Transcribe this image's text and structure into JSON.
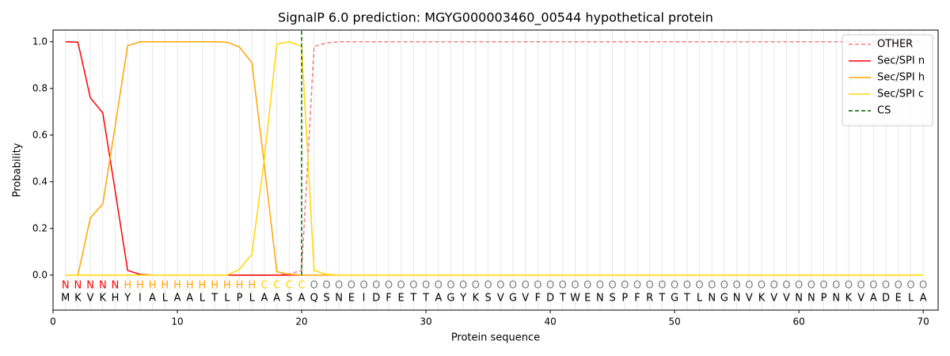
{
  "chart_data": {
    "type": "line",
    "title": "SignalP 6.0 prediction: MGYG000003460_00544 hypothetical protein",
    "xlabel": "Protein sequence",
    "ylabel": "Probability",
    "x": [
      1,
      2,
      3,
      4,
      5,
      6,
      7,
      8,
      9,
      10,
      11,
      12,
      13,
      14,
      15,
      16,
      17,
      18,
      19,
      20,
      21,
      22,
      23,
      24,
      25,
      26,
      27,
      28,
      29,
      30,
      31,
      32,
      33,
      34,
      35,
      36,
      37,
      38,
      39,
      40,
      41,
      42,
      43,
      44,
      45,
      46,
      47,
      48,
      49,
      50,
      51,
      52,
      53,
      54,
      55,
      56,
      57,
      58,
      59,
      60,
      61,
      62,
      63,
      64,
      65,
      66,
      67,
      68,
      69,
      70
    ],
    "residues": [
      "M",
      "K",
      "V",
      "K",
      "H",
      "Y",
      "I",
      "A",
      "L",
      "A",
      "A",
      "L",
      "T",
      "L",
      "P",
      "L",
      "A",
      "A",
      "S",
      "A",
      "Q",
      "S",
      "N",
      "E",
      "I",
      "D",
      "F",
      "E",
      "T",
      "T",
      "A",
      "G",
      "Y",
      "K",
      "S",
      "V",
      "G",
      "V",
      "F",
      "D",
      "T",
      "W",
      "E",
      "N",
      "S",
      "P",
      "F",
      "R",
      "T",
      "G",
      "T",
      "L",
      "N",
      "G",
      "N",
      "V",
      "K",
      "V",
      "V",
      "N",
      "N",
      "P",
      "N",
      "K",
      "V",
      "A",
      "D",
      "E",
      "L",
      "A"
    ],
    "labels": [
      "N",
      "N",
      "N",
      "N",
      "N",
      "H",
      "H",
      "H",
      "H",
      "H",
      "H",
      "H",
      "H",
      "H",
      "H",
      "H",
      "C",
      "C",
      "C",
      "C",
      "O",
      "O",
      "O",
      "O",
      "O",
      "O",
      "O",
      "O",
      "O",
      "O",
      "O",
      "O",
      "O",
      "O",
      "O",
      "O",
      "O",
      "O",
      "O",
      "O",
      "O",
      "O",
      "O",
      "O",
      "O",
      "O",
      "O",
      "O",
      "O",
      "O",
      "O",
      "O",
      "O",
      "O",
      "O",
      "O",
      "O",
      "O",
      "O",
      "O",
      "O",
      "O",
      "O",
      "O",
      "O",
      "O",
      "O",
      "O",
      "O",
      "O"
    ],
    "label_colors": {
      "N": "#ff0000",
      "H": "#ffa500",
      "C": "#ffd700",
      "O": "#808080"
    },
    "series": [
      {
        "name": "OTHER",
        "color": "#f08080",
        "dash": true,
        "values": [
          0,
          0,
          0,
          0,
          0,
          0,
          0,
          0,
          0,
          0,
          0,
          0,
          0,
          0,
          0,
          0,
          0,
          0,
          0.005,
          0.02,
          0.98,
          0.995,
          1,
          1,
          1,
          1,
          1,
          1,
          1,
          1,
          1,
          1,
          1,
          1,
          1,
          1,
          1,
          1,
          1,
          1,
          1,
          1,
          1,
          1,
          1,
          1,
          1,
          1,
          1,
          1,
          1,
          1,
          1,
          1,
          1,
          1,
          1,
          1,
          1,
          1,
          1,
          1,
          1,
          1,
          1,
          1,
          1,
          1,
          1,
          1
        ]
      },
      {
        "name": "Sec/SPI n",
        "color": "#ff0000",
        "dash": false,
        "values": [
          1.0,
          0.998,
          0.76,
          0.695,
          0.36,
          0.02,
          0.003,
          0,
          0,
          0,
          0,
          0,
          0,
          0,
          0,
          0,
          0,
          0,
          0,
          0,
          0,
          0,
          0,
          0,
          0,
          0,
          0,
          0,
          0,
          0,
          0,
          0,
          0,
          0,
          0,
          0,
          0,
          0,
          0,
          0,
          0,
          0,
          0,
          0,
          0,
          0,
          0,
          0,
          0,
          0,
          0,
          0,
          0,
          0,
          0,
          0,
          0,
          0,
          0,
          0,
          0,
          0,
          0,
          0,
          0,
          0,
          0,
          0,
          0,
          0
        ]
      },
      {
        "name": "Sec/SPI h",
        "color": "#ffa500",
        "dash": false,
        "values": [
          0,
          0,
          0.245,
          0.305,
          0.64,
          0.983,
          1.0,
          1.0,
          1.0,
          1.0,
          1.0,
          1.0,
          1.0,
          0.998,
          0.977,
          0.91,
          0.47,
          0.015,
          0.003,
          0,
          0,
          0,
          0,
          0,
          0,
          0,
          0,
          0,
          0,
          0,
          0,
          0,
          0,
          0,
          0,
          0,
          0,
          0,
          0,
          0,
          0,
          0,
          0,
          0,
          0,
          0,
          0,
          0,
          0,
          0,
          0,
          0,
          0,
          0,
          0,
          0,
          0,
          0,
          0,
          0,
          0,
          0,
          0,
          0,
          0,
          0,
          0,
          0,
          0,
          0
        ]
      },
      {
        "name": "Sec/SPI c",
        "color": "#ffd700",
        "dash": false,
        "values": [
          0,
          0,
          0,
          0,
          0,
          0,
          0,
          0,
          0,
          0,
          0,
          0,
          0,
          0,
          0.025,
          0.09,
          0.5,
          0.99,
          1.0,
          0.98,
          0.02,
          0.003,
          0,
          0,
          0,
          0,
          0,
          0,
          0,
          0,
          0,
          0,
          0,
          0,
          0,
          0,
          0,
          0,
          0,
          0,
          0,
          0,
          0,
          0,
          0,
          0,
          0,
          0,
          0,
          0,
          0,
          0,
          0,
          0,
          0,
          0,
          0,
          0,
          0,
          0,
          0,
          0,
          0,
          0,
          0,
          0,
          0,
          0,
          0,
          0
        ]
      }
    ],
    "cs": {
      "name": "CS",
      "x": 20,
      "color": "#006400"
    },
    "xlim": [
      0,
      71.2
    ],
    "ylim": [
      -0.15,
      1.05
    ],
    "xticks": [
      0,
      10,
      20,
      30,
      40,
      50,
      60,
      70
    ],
    "yticks": [
      {
        "value": 0,
        "label": "0.0"
      },
      {
        "value": 0.2,
        "label": "0.2"
      },
      {
        "value": 0.4,
        "label": "0.4"
      },
      {
        "value": 0.6,
        "label": "0.6"
      },
      {
        "value": 0.8,
        "label": "0.8"
      },
      {
        "value": 1,
        "label": "1.0"
      }
    ],
    "legend": "upper right"
  }
}
